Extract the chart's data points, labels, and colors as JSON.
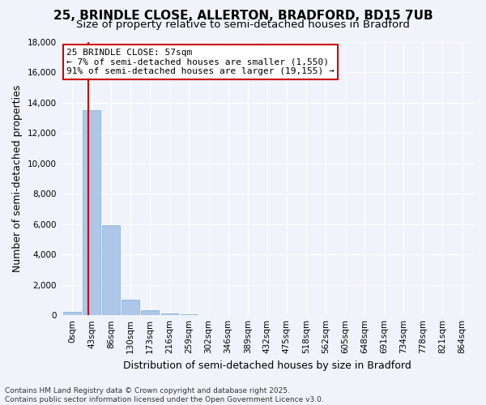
{
  "title": "25, BRINDLE CLOSE, ALLERTON, BRADFORD, BD15 7UB",
  "subtitle": "Size of property relative to semi-detached houses in Bradford",
  "xlabel": "Distribution of semi-detached houses by size in Bradford",
  "ylabel": "Number of semi-detached properties",
  "bin_labels": [
    "0sqm",
    "43sqm",
    "86sqm",
    "130sqm",
    "173sqm",
    "216sqm",
    "259sqm",
    "302sqm",
    "346sqm",
    "389sqm",
    "432sqm",
    "475sqm",
    "518sqm",
    "562sqm",
    "605sqm",
    "648sqm",
    "691sqm",
    "734sqm",
    "778sqm",
    "821sqm",
    "864sqm"
  ],
  "bar_values": [
    200,
    13500,
    5900,
    1000,
    350,
    100,
    50,
    5,
    2,
    1,
    0,
    0,
    0,
    0,
    0,
    0,
    0,
    0,
    0,
    0,
    0
  ],
  "bar_color": "#aec6e8",
  "bar_edge_color": "#7aafd4",
  "ylim": [
    0,
    18000
  ],
  "yticks": [
    0,
    2000,
    4000,
    6000,
    8000,
    10000,
    12000,
    14000,
    16000,
    18000
  ],
  "red_line_x": 57,
  "annotation_title": "25 BRINDLE CLOSE: 57sqm",
  "annotation_line1": "← 7% of semi-detached houses are smaller (1,550)",
  "annotation_line2": "91% of semi-detached houses are larger (19,155) →",
  "annotation_box_color": "#ffffff",
  "annotation_box_edge_color": "#cc0000",
  "red_line_color": "#cc0000",
  "footer_line1": "Contains HM Land Registry data © Crown copyright and database right 2025.",
  "footer_line2": "Contains public sector information licensed under the Open Government Licence v3.0.",
  "background_color": "#f0f4fa",
  "grid_color": "#ffffff",
  "title_fontsize": 11,
  "subtitle_fontsize": 9.5,
  "axis_label_fontsize": 9,
  "tick_fontsize": 7.5,
  "annotation_fontsize": 8,
  "footer_fontsize": 6.5
}
